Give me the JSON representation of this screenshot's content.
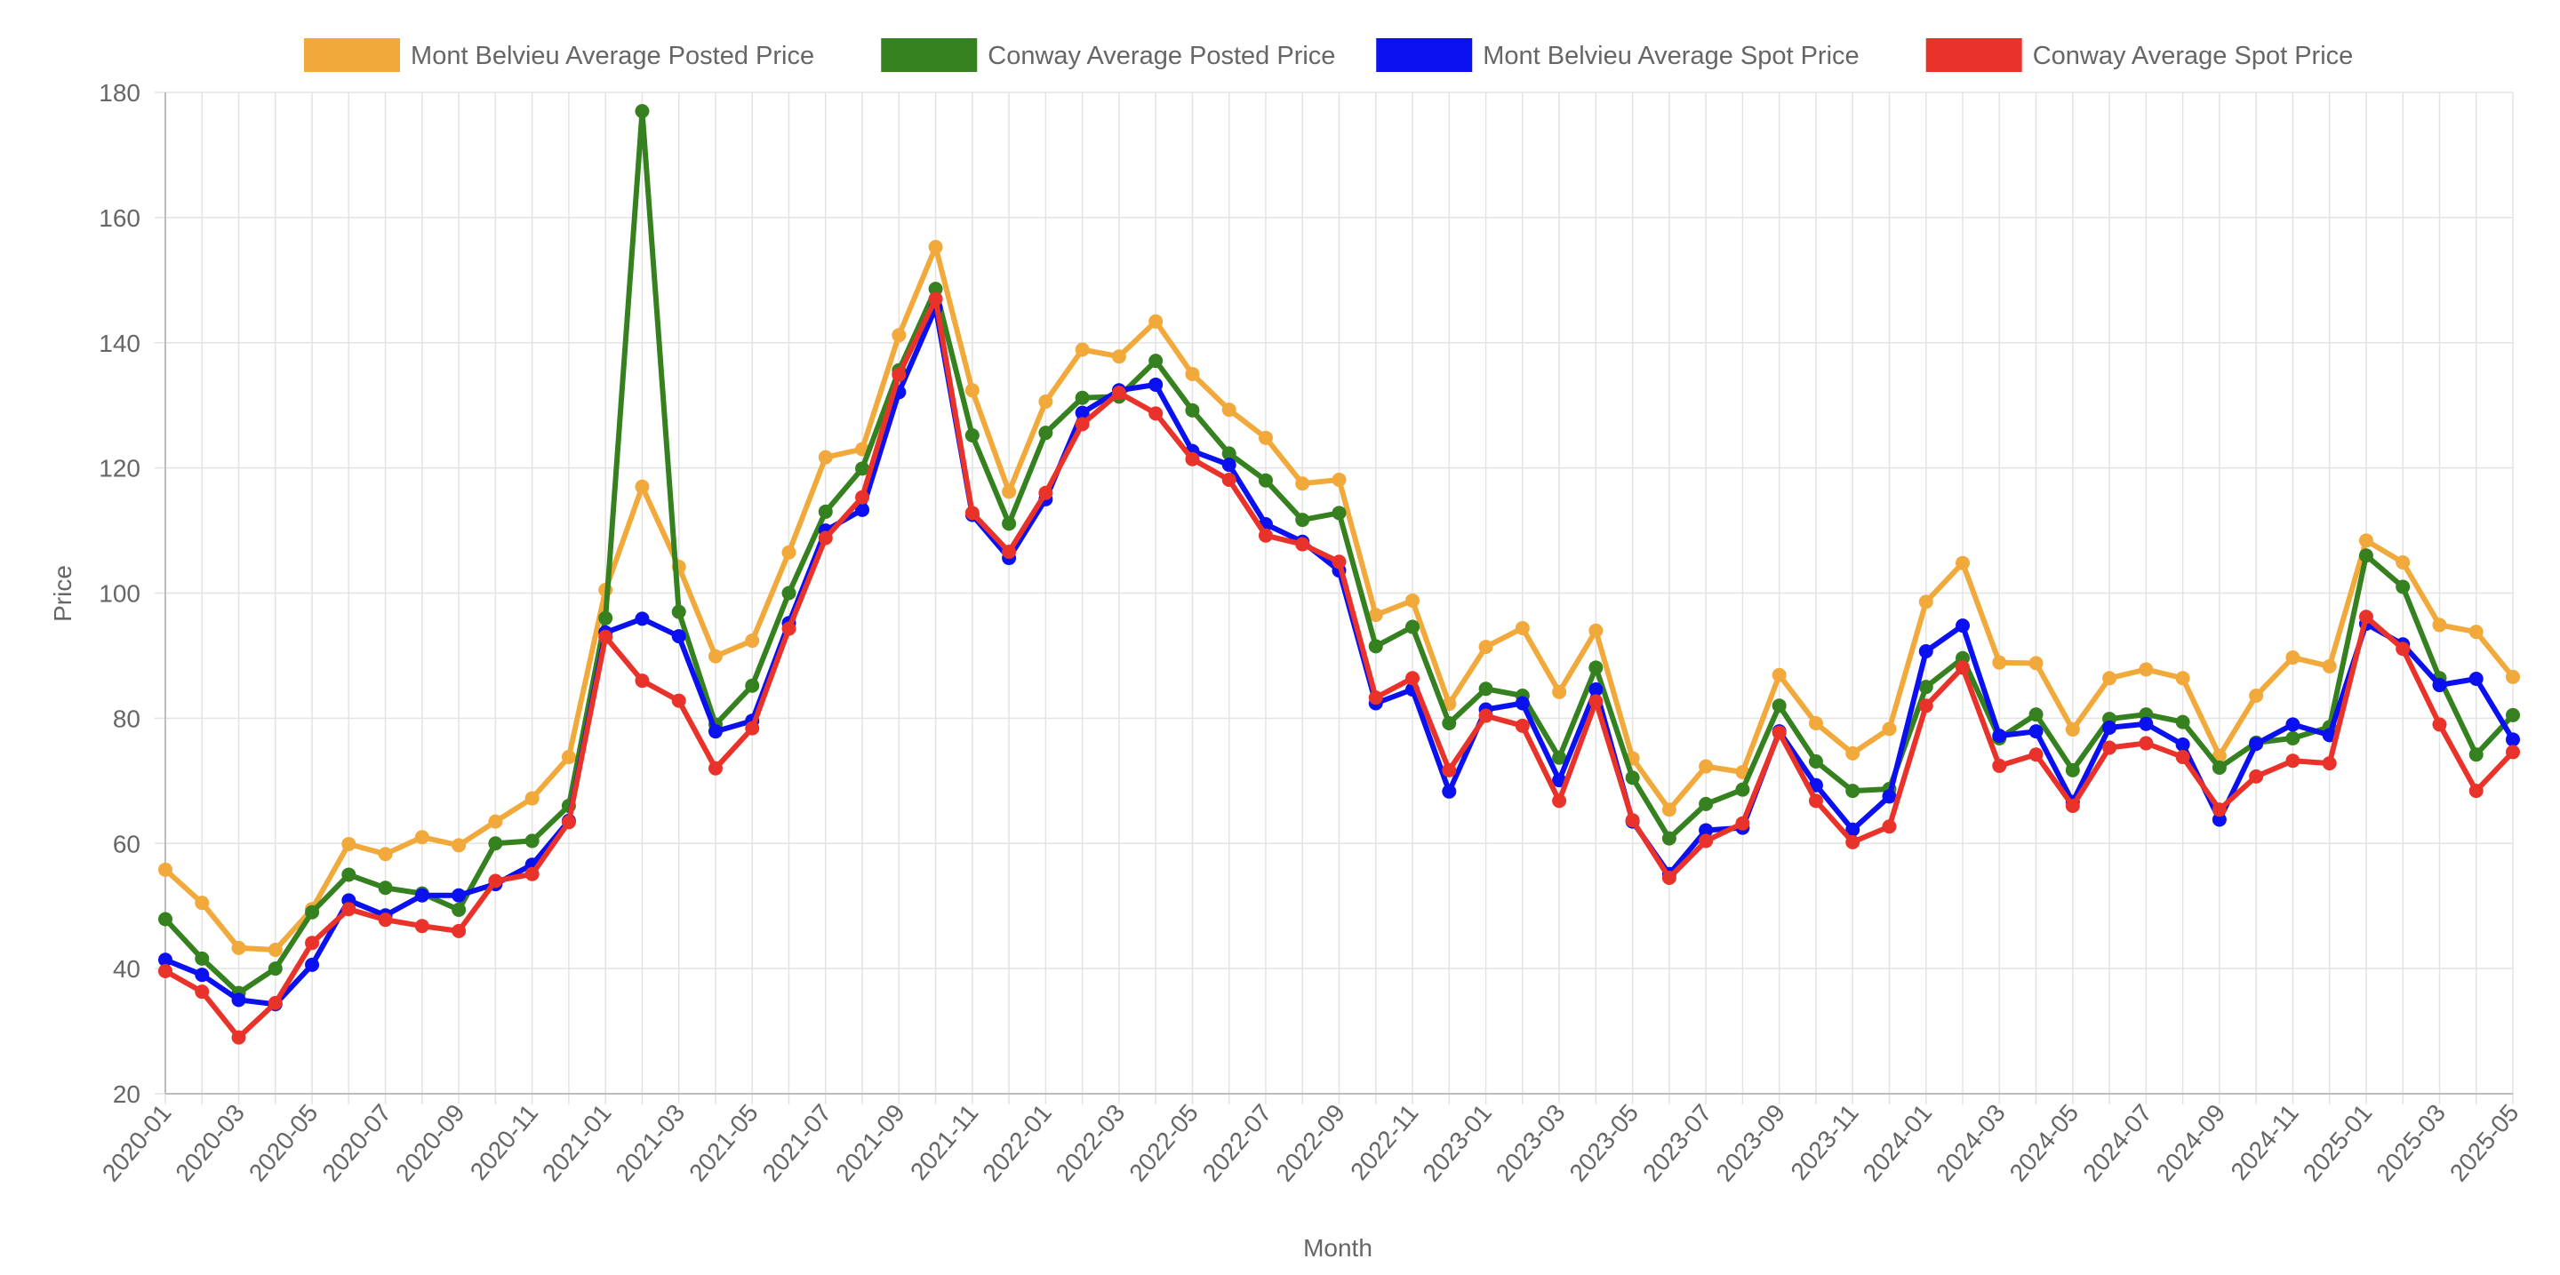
{
  "chart_data": {
    "type": "line",
    "xlabel": "Month",
    "ylabel": "Price",
    "ylim": [
      20,
      180
    ],
    "yticks": [
      20,
      40,
      60,
      80,
      100,
      120,
      140,
      160,
      180
    ],
    "grid": true,
    "legend_position": "top-center",
    "x": [
      "2020-01",
      "2020-02",
      "2020-03",
      "2020-04",
      "2020-05",
      "2020-06",
      "2020-07",
      "2020-08",
      "2020-09",
      "2020-10",
      "2020-11",
      "2020-12",
      "2021-01",
      "2021-02",
      "2021-03",
      "2021-04",
      "2021-05",
      "2021-06",
      "2021-07",
      "2021-08",
      "2021-09",
      "2021-10",
      "2021-11",
      "2021-12",
      "2022-01",
      "2022-02",
      "2022-03",
      "2022-04",
      "2022-05",
      "2022-06",
      "2022-07",
      "2022-08",
      "2022-09",
      "2022-10",
      "2022-11",
      "2022-12",
      "2023-01",
      "2023-02",
      "2023-03",
      "2023-04",
      "2023-05",
      "2023-06",
      "2023-07",
      "2023-08",
      "2023-09",
      "2023-10",
      "2023-11",
      "2023-12",
      "2024-01",
      "2024-02",
      "2024-03",
      "2024-04",
      "2024-05",
      "2024-06",
      "2024-07",
      "2024-08",
      "2024-09",
      "2024-10",
      "2024-11",
      "2024-12",
      "2025-01",
      "2025-02",
      "2025-03",
      "2025-04",
      "2025-05"
    ],
    "xtick_labels": [
      "2020-01",
      "2020-03",
      "2020-05",
      "2020-07",
      "2020-09",
      "2020-11",
      "2021-01",
      "2021-03",
      "2021-05",
      "2021-07",
      "2021-09",
      "2021-11",
      "2022-01",
      "2022-03",
      "2022-05",
      "2022-07",
      "2022-09",
      "2022-11",
      "2023-01",
      "2023-03",
      "2023-05",
      "2023-07",
      "2023-09",
      "2023-11",
      "2024-01",
      "2024-03",
      "2024-05",
      "2024-07",
      "2024-09",
      "2024-11",
      "2025-01",
      "2025-03",
      "2025-05"
    ],
    "series": [
      {
        "name": "Mont Belvieu Average Posted Price",
        "color": "#f2a93b",
        "values": [
          55.8,
          50.5,
          43.3,
          43.0,
          49.5,
          59.9,
          58.3,
          61.0,
          59.7,
          63.5,
          67.2,
          73.8,
          100.5,
          117.0,
          104.2,
          89.9,
          92.4,
          106.5,
          121.7,
          123.0,
          141.2,
          155.3,
          132.4,
          116.2,
          130.6,
          138.9,
          137.8,
          143.4,
          135.0,
          129.3,
          124.8,
          117.5,
          118.1,
          96.5,
          98.8,
          82.3,
          91.4,
          94.4,
          84.2,
          94.0,
          73.6,
          65.4,
          72.3,
          71.4,
          86.9,
          79.2,
          74.4,
          78.3,
          98.6,
          104.8,
          88.9,
          88.8,
          78.2,
          86.4,
          87.8,
          86.4,
          74.0,
          83.6,
          89.7,
          88.3,
          108.4,
          104.9,
          94.9,
          93.8,
          86.6
        ]
      },
      {
        "name": "Conway Average Posted Price",
        "color": "#35801f",
        "values": [
          47.9,
          41.6,
          36.1,
          40.0,
          49.0,
          55.0,
          52.9,
          52.0,
          49.4,
          60.0,
          60.4,
          66.0,
          96.0,
          177.0,
          97.0,
          79.0,
          85.2,
          100.0,
          113.0,
          119.9,
          135.6,
          148.6,
          125.2,
          111.1,
          125.6,
          131.2,
          131.4,
          137.1,
          129.2,
          122.3,
          118.0,
          111.7,
          112.8,
          91.5,
          94.6,
          79.2,
          84.7,
          83.6,
          73.7,
          88.1,
          70.5,
          60.8,
          66.3,
          68.6,
          82.0,
          73.1,
          68.4,
          68.7,
          85.0,
          89.6,
          76.8,
          80.6,
          71.7,
          79.9,
          80.6,
          79.4,
          72.1,
          76.1,
          76.8,
          78.6,
          106.0,
          101.0,
          86.4,
          74.2,
          80.5
        ]
      },
      {
        "name": "Mont Belvieu Average Spot Price",
        "color": "#0a10f0",
        "values": [
          41.4,
          39.0,
          35.0,
          34.3,
          40.6,
          50.9,
          48.5,
          51.7,
          51.7,
          53.5,
          56.6,
          63.6,
          93.7,
          95.9,
          93.1,
          77.9,
          79.6,
          95.2,
          110.0,
          113.3,
          132.1,
          145.6,
          112.5,
          105.6,
          115.0,
          128.8,
          132.4,
          133.3,
          122.7,
          120.5,
          111.0,
          108.2,
          103.6,
          82.4,
          84.6,
          68.3,
          81.4,
          82.4,
          70.1,
          84.6,
          63.5,
          55.1,
          62.1,
          62.5,
          77.9,
          69.3,
          62.2,
          67.5,
          90.7,
          94.8,
          77.2,
          77.9,
          66.6,
          78.5,
          79.1,
          75.8,
          63.8,
          75.9,
          79.0,
          77.3,
          95.1,
          91.8,
          85.3,
          86.3,
          76.6
        ]
      },
      {
        "name": "Conway Average Spot Price",
        "color": "#e9332a",
        "values": [
          39.6,
          36.3,
          29.0,
          34.5,
          44.1,
          49.5,
          47.8,
          46.8,
          46.0,
          54.0,
          55.1,
          63.4,
          93.0,
          86.0,
          82.8,
          72.0,
          78.4,
          94.3,
          108.8,
          115.3,
          134.9,
          147.0,
          112.8,
          106.6,
          116.0,
          127.0,
          132.0,
          128.7,
          121.4,
          118.1,
          109.2,
          107.8,
          105.0,
          83.3,
          86.4,
          71.7,
          80.4,
          78.8,
          66.8,
          82.7,
          63.7,
          54.5,
          60.4,
          63.2,
          77.7,
          66.8,
          60.2,
          62.7,
          82.0,
          88.1,
          72.4,
          74.2,
          66.0,
          75.3,
          76.0,
          73.8,
          65.4,
          70.7,
          73.2,
          72.8,
          96.2,
          91.1,
          79.0,
          68.4,
          74.6
        ]
      }
    ]
  }
}
